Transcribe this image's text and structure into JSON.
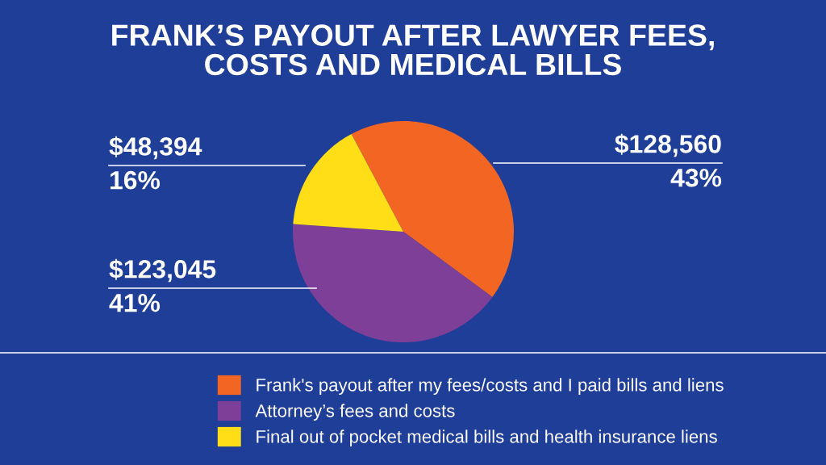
{
  "chart_data": {
    "type": "pie",
    "title": "FRANK’S PAYOUT AFTER LAWYER FEES,\nCOSTS AND MEDICAL BILLS",
    "categories": [
      "Frank's payout after my fees/costs and I paid bills and liens",
      "Attorney’s fees and costs",
      "Final out of pocket medical bills and health insurance liens"
    ],
    "values": [
      128560,
      123045,
      48394
    ],
    "colors": [
      "#f26522",
      "#7e3f98",
      "#ffdd17"
    ],
    "value_labels": [
      "$128,560\n43%",
      "$123,045\n41%",
      "$48,394\n16%"
    ],
    "legend": "bottom"
  }
}
